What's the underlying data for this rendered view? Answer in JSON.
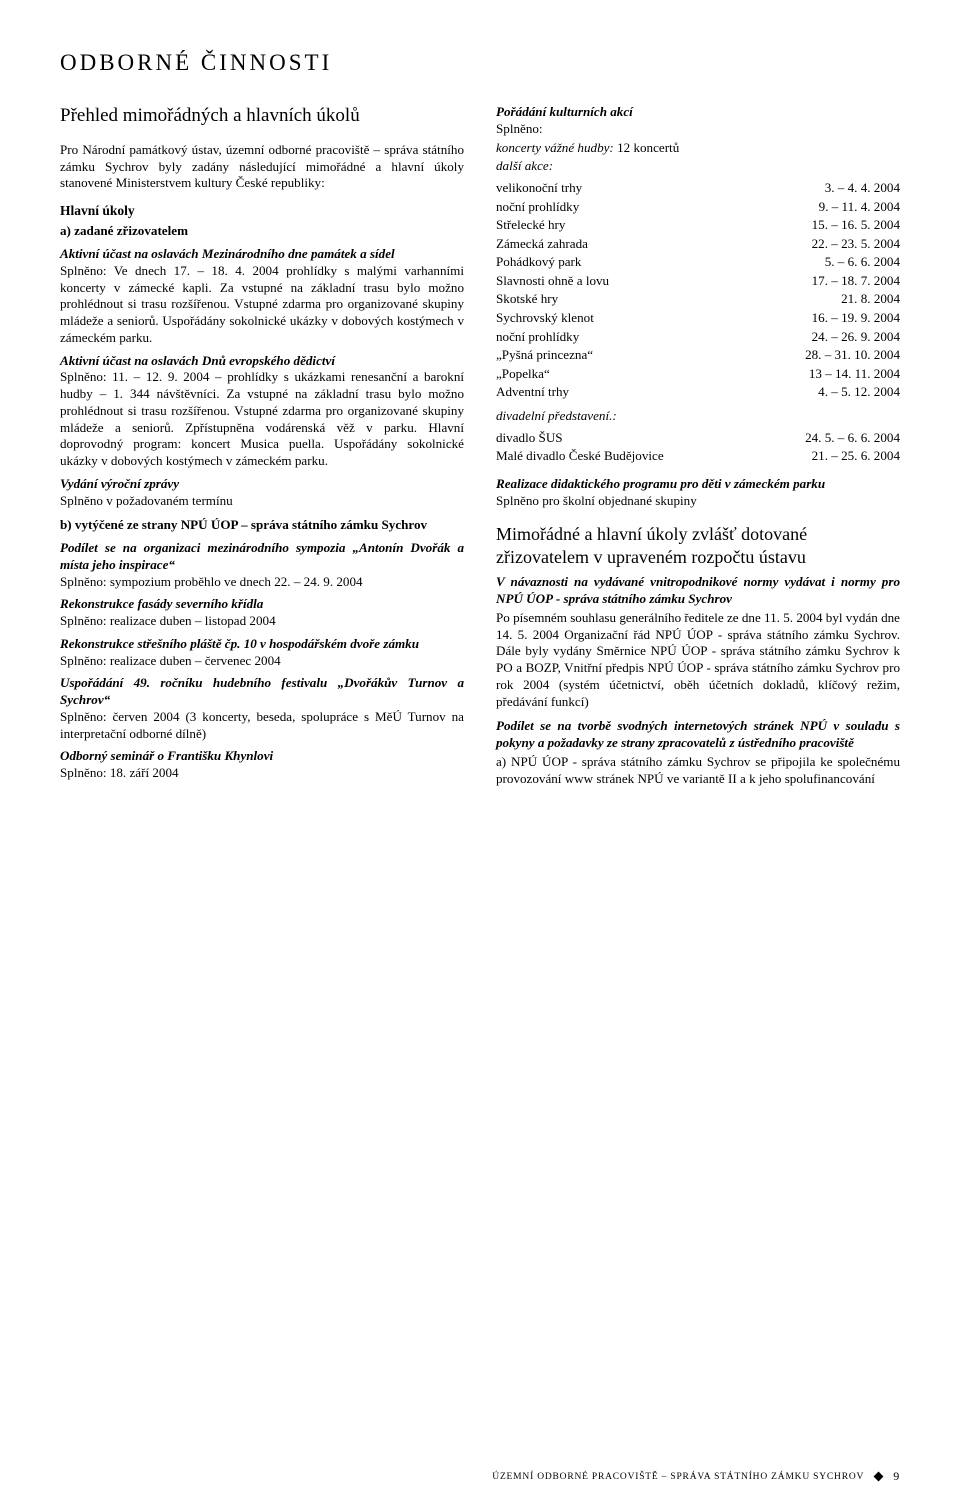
{
  "heading": "ODBORNÉ ČINNOSTI",
  "left": {
    "title": "Přehled mimořádných a hlavních úkolů",
    "intro": "Pro Národní památkový ústav, územní odborné pracoviště – správa státního zámku Sychrov byly zadány následující mimořádné a hlavní úkoly stanovené Ministerstvem kultury České republiky:",
    "hlavni_ukoly": "Hlavní úkoly",
    "a_label": "a) zadané zřizovatelem",
    "block_a1_title": "Aktivní účast na oslavách Mezinárodního dne památek a sídel",
    "block_a1_body": "Splněno: Ve dnech 17. – 18. 4. 2004 prohlídky s malými varhanními koncerty v zámecké kapli. Za vstupné na základní trasu bylo možno prohlédnout si trasu rozšířenou. Vstupné zdarma pro organizované skupiny mládeže a seniorů. Uspořádány sokolnické ukázky v dobových kostýmech v zámeckém parku.",
    "block_a2_title": "Aktivní účast na oslavách Dnů evropského dědictví",
    "block_a2_body": "Splněno: 11. – 12. 9. 2004 – prohlídky s ukázkami renesanční a barokní hudby – 1. 344 návštěvníci. Za vstupné na základní trasu bylo možno prohlédnout si trasu rozšířenou. Vstupné zdarma pro organizované skupiny mládeže a seniorů. Zpřístupněna vodárenská věž v parku. Hlavní doprovodný program: koncert Musica puella. Uspořádány sokolnické ukázky v dobových kostýmech v zámeckém parku.",
    "block_a3_title": "Vydání výroční zprávy",
    "block_a3_body": "Splněno v požadovaném termínu",
    "b_label": "b) vytýčené ze strany NPÚ ÚOP – správa státního zámku Sychrov",
    "block_b1_title": "Podílet se na organizaci mezinárodního sympozia „Antonín Dvořák a místa jeho inspirace“",
    "block_b1_body": "Splněno: sympozium proběhlo ve dnech 22. – 24. 9. 2004",
    "block_b2_title": "Rekonstrukce fasády severního křídla",
    "block_b2_body": "Splněno: realizace duben – listopad 2004",
    "block_b3_title": "Rekonstrukce střešního pláště čp. 10 v hospodářském dvoře zámku",
    "block_b3_body": "Splněno: realizace duben – červenec 2004",
    "block_b4_title": "Uspořádání 49. ročníku hudebního festivalu „Dvořákův Turnov a Sychrov“",
    "block_b4_body": "Splněno: červen 2004 (3 koncerty, beseda, spolupráce s MěÚ Turnov na interpretační odborné dílně)",
    "block_b5_title": "Odborný seminář o Františku Khynlovi",
    "block_b5_body": "Splněno: 18. září 2004"
  },
  "right": {
    "r1_title": "Pořádání kulturních akcí",
    "r1_splneno": "Splněno:",
    "r1_koncerty_prefix": "koncerty vážné hudby:",
    "r1_koncerty_suffix": " 12 koncertů",
    "r1_dalsi": "další akce:",
    "events": [
      {
        "name": "velikonoční trhy",
        "date": "3. – 4. 4. 2004"
      },
      {
        "name": "noční prohlídky",
        "date": "9. – 11. 4. 2004"
      },
      {
        "name": "Střelecké hry",
        "date": "15. – 16. 5. 2004"
      },
      {
        "name": "Zámecká zahrada",
        "date": "22. – 23. 5. 2004"
      },
      {
        "name": "Pohádkový park",
        "date": "5. – 6. 6. 2004"
      },
      {
        "name": "Slavnosti ohně a lovu",
        "date": "17. – 18. 7. 2004"
      },
      {
        "name": "Skotské hry",
        "date": "21. 8. 2004"
      },
      {
        "name": "Sychrovský klenot",
        "date": "16. – 19. 9. 2004"
      },
      {
        "name": "noční prohlídky",
        "date": "24. – 26. 9. 2004"
      },
      {
        "name": "„Pyšná princezna“",
        "date": "28. – 31. 10. 2004"
      },
      {
        "name": "„Popelka“",
        "date": "13 – 14. 11. 2004"
      },
      {
        "name": "Adventní trhy",
        "date": "4. – 5. 12. 2004"
      }
    ],
    "r1_div": "divadelní představení.:",
    "theatre": [
      {
        "name": "divadlo ŠUS",
        "date": "24. 5. – 6. 6. 2004"
      },
      {
        "name": "Malé divadlo České Budějovice",
        "date": "21. – 25. 6. 2004"
      }
    ],
    "r2_title": "Realizace didaktického programu pro děti v zámeckém parku",
    "r2_body": "Splněno pro školní objednané skupiny",
    "r3_title": "Mimořádné a hlavní úkoly zvlášť dotované zřizovatelem v upraveném rozpočtu ústavu",
    "r3_sub_title": "V návaznosti na vydávané vnitropodnikové normy vydávat i normy pro NPÚ ÚOP - správa státního zámku Sychrov",
    "r3_body": "Po písemném souhlasu generálního ředitele ze dne 11. 5. 2004 byl vydán dne 14. 5. 2004 Organizační řád NPÚ ÚOP - správa státního zámku Sychrov. Dále byly vydány Směrnice NPÚ ÚOP - správa státního zámku Sychrov k PO a BOZP, Vnitřní předpis NPÚ ÚOP - správa státního zámku Sychrov pro rok 2004 (systém účetnictví, oběh účetních dokladů, klíčový režim, předávání funkcí)",
    "r4_title": "Podílet se na tvorbě svodných internetových stránek NPÚ v souladu s pokyny a požadavky ze strany zpracovatelů z ústředního pracoviště",
    "r4_body": "a) NPÚ ÚOP - správa státního zámku Sychrov se připojila ke společnému provozování www stránek NPÚ ve variantě II a k jeho spolufinancování"
  },
  "footer": {
    "text": "ÚZEMNÍ ODBORNÉ PRACOVIŠTĚ – SPRÁVA STÁTNÍHO ZÁMKU SYCHROV",
    "page": "9"
  }
}
